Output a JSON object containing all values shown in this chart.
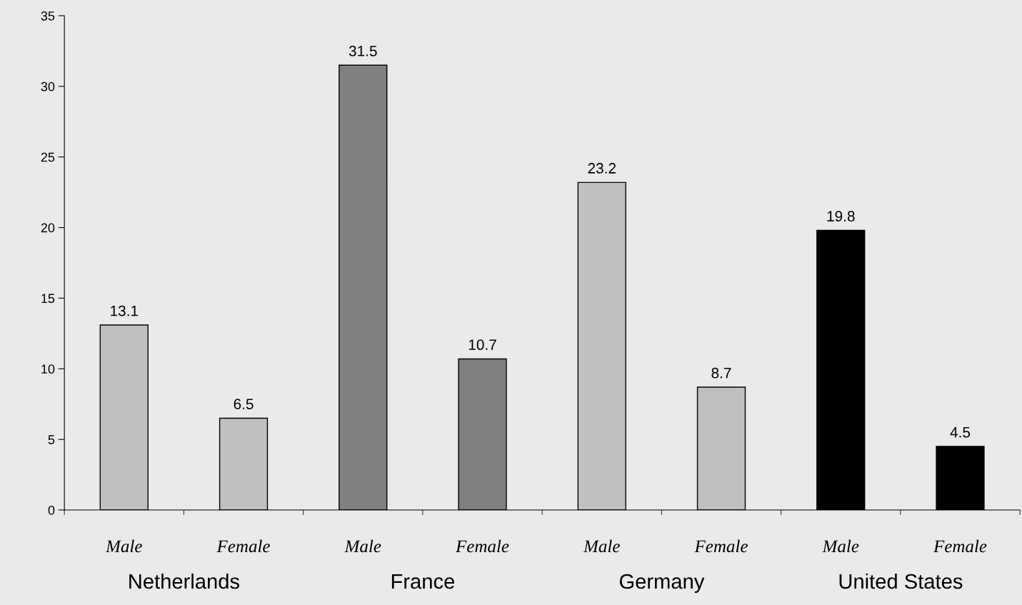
{
  "chart_data": {
    "type": "bar",
    "categories": [
      "Male",
      "Female",
      "Male",
      "Female",
      "Male",
      "Female",
      "Male",
      "Female"
    ],
    "values": [
      13.1,
      6.5,
      31.5,
      10.7,
      23.2,
      8.7,
      19.8,
      4.5
    ],
    "colors": [
      "#c0c0c0",
      "#c0c0c0",
      "#808080",
      "#808080",
      "#c0c0c0",
      "#c0c0c0",
      "#000000",
      "#000000"
    ],
    "ylim": [
      0,
      35
    ],
    "yticks": [
      0,
      5,
      10,
      15,
      20,
      25,
      30,
      35
    ],
    "data_labels": true,
    "grid": false,
    "legend": false,
    "annotations": [
      "Netherlands",
      "France",
      "Germany",
      "United States"
    ]
  }
}
